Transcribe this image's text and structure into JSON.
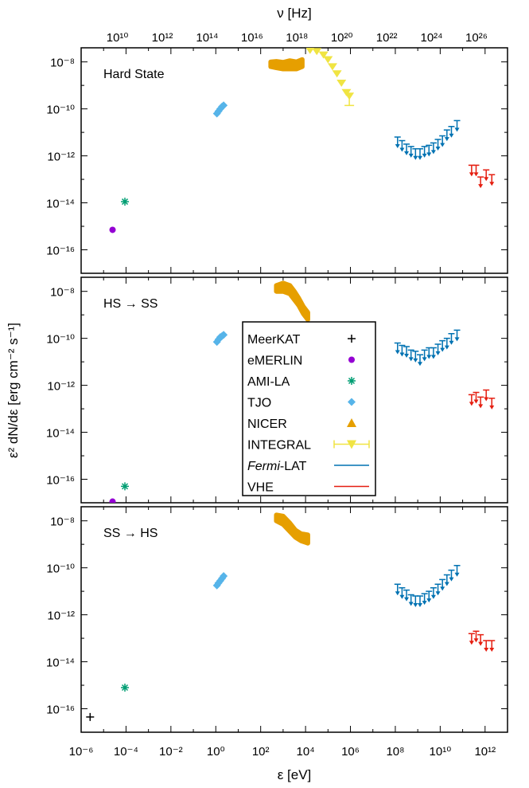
{
  "chart_data": {
    "type": "scatter",
    "shared_x_axis": {
      "label": "ε [eV]",
      "scale": "log",
      "range_eV": [
        1e-06,
        10000000000000.0
      ],
      "tick_labels": [
        "10⁻⁶",
        "10⁻⁴",
        "10⁻²",
        "10⁰",
        "10²",
        "10⁴",
        "10⁶",
        "10⁸",
        "10¹⁰",
        "10¹²"
      ]
    },
    "top_axis": {
      "label": "ν [Hz]",
      "scale": "log",
      "tick_labels": [
        "10¹⁰",
        "10¹²",
        "10¹⁴",
        "10¹⁶",
        "10¹⁸",
        "10²⁰",
        "10²²",
        "10²⁴",
        "10²⁶"
      ]
    },
    "y_axis": {
      "label": "ε² dN/dε [erg cm⁻² s⁻¹]",
      "scale": "log",
      "tick_labels": [
        "10⁻¹⁶",
        "10⁻¹⁴",
        "10⁻¹²",
        "10⁻¹⁰",
        "10⁻⁸"
      ]
    },
    "legend": {
      "placement": "inside, middle panel, center",
      "entries": [
        {
          "name": "MeerKAT",
          "marker": "plus",
          "color": "#000000"
        },
        {
          "name": "eMERLIN",
          "marker": "circle",
          "color": "#9400d3"
        },
        {
          "name": "AMI-LA",
          "marker": "asterisk",
          "color": "#009e73"
        },
        {
          "name": "TJO",
          "marker": "diamond",
          "color": "#56b4e9"
        },
        {
          "name": "NICER",
          "marker": "triangle",
          "color": "#e69f00"
        },
        {
          "name": "INTEGRAL",
          "marker": "triangle-down-errorbar",
          "color": "#f0e442"
        },
        {
          "name_pre": "",
          "name_italic": "Fermi",
          "name_post": "-LAT",
          "marker": "line",
          "color": "#0072b2"
        },
        {
          "name": "VHE",
          "marker": "line",
          "color": "#e51e10"
        }
      ]
    },
    "panels": [
      {
        "label": "Hard State",
        "ylim_log": [
          -17,
          -7.4
        ],
        "series": {
          "eMERLIN": [
            [
              -4.6,
              -15.15
            ]
          ],
          "AMI-LA": [
            [
              -4.05,
              -13.95
            ]
          ],
          "TJO": [
            [
              0.05,
              -10.2
            ],
            [
              0.12,
              -10.1
            ],
            [
              0.2,
              -10.0
            ],
            [
              0.28,
              -9.9
            ],
            [
              0.35,
              -9.85
            ]
          ],
          "NICER_band": [
            [
              2.45,
              -8.0,
              -8.2
            ],
            [
              2.7,
              -7.98,
              -8.25
            ],
            [
              3.0,
              -8.02,
              -8.3
            ],
            [
              3.3,
              -7.95,
              -8.3
            ],
            [
              3.6,
              -8.0,
              -8.3
            ],
            [
              3.85,
              -7.9,
              -8.2
            ]
          ],
          "INTEGRAL": [
            [
              4.2,
              -7.5
            ],
            [
              4.5,
              -7.55
            ],
            [
              4.8,
              -7.7
            ],
            [
              5.0,
              -7.9
            ],
            [
              5.2,
              -8.2
            ],
            [
              5.4,
              -8.5
            ],
            [
              5.6,
              -8.9
            ],
            [
              5.82,
              -9.3
            ],
            [
              5.95,
              -9.45
            ]
          ],
          "Fermi-LAT_UL": [
            [
              8.1,
              -11.2
            ],
            [
              8.3,
              -11.35
            ],
            [
              8.5,
              -11.5
            ],
            [
              8.7,
              -11.6
            ],
            [
              8.9,
              -11.7
            ],
            [
              9.1,
              -11.7
            ],
            [
              9.3,
              -11.6
            ],
            [
              9.5,
              -11.55
            ],
            [
              9.7,
              -11.45
            ],
            [
              9.9,
              -11.3
            ],
            [
              10.1,
              -11.15
            ],
            [
              10.3,
              -10.9
            ],
            [
              10.5,
              -10.75
            ],
            [
              10.75,
              -10.5
            ]
          ],
          "VHE_UL": [
            [
              11.4,
              -12.4
            ],
            [
              11.6,
              -12.4
            ],
            [
              11.8,
              -12.9
            ],
            [
              12.05,
              -12.6
            ],
            [
              12.3,
              -12.8
            ]
          ]
        }
      },
      {
        "label": "HS → SS",
        "ylim_log": [
          -17,
          -7.4
        ],
        "series": {
          "eMERLIN": [
            [
              -4.6,
              -16.95
            ]
          ],
          "AMI-LA": [
            [
              -4.05,
              -16.3
            ]
          ],
          "TJO": [
            [
              0.05,
              -10.15
            ],
            [
              0.12,
              -10.05
            ],
            [
              0.2,
              -9.95
            ],
            [
              0.28,
              -9.9
            ],
            [
              0.35,
              -9.85
            ]
          ],
          "NICER_band": [
            [
              2.7,
              -7.75,
              -8.0
            ],
            [
              3.0,
              -7.65,
              -8.0
            ],
            [
              3.3,
              -7.75,
              -8.1
            ],
            [
              3.5,
              -8.0,
              -8.35
            ],
            [
              3.7,
              -8.3,
              -8.6
            ],
            [
              3.9,
              -8.65,
              -8.95
            ],
            [
              4.1,
              -8.9,
              -9.2
            ]
          ],
          "Fermi-LAT_UL": [
            [
              8.1,
              -10.2
            ],
            [
              8.3,
              -10.3
            ],
            [
              8.5,
              -10.35
            ],
            [
              8.7,
              -10.5
            ],
            [
              8.9,
              -10.55
            ],
            [
              9.1,
              -10.7
            ],
            [
              9.3,
              -10.5
            ],
            [
              9.5,
              -10.4
            ],
            [
              9.7,
              -10.4
            ],
            [
              9.9,
              -10.25
            ],
            [
              10.1,
              -10.1
            ],
            [
              10.3,
              -10.0
            ],
            [
              10.5,
              -9.8
            ],
            [
              10.75,
              -9.65
            ]
          ],
          "VHE_UL": [
            [
              11.4,
              -12.4
            ],
            [
              11.6,
              -12.3
            ],
            [
              11.8,
              -12.5
            ],
            [
              12.05,
              -12.2
            ],
            [
              12.3,
              -12.55
            ]
          ]
        }
      },
      {
        "label": "SS → HS",
        "ylim_log": [
          -17,
          -7.4
        ],
        "series": {
          "MeerKAT": [
            [
              -5.6,
              -16.35
            ]
          ],
          "AMI-LA": [
            [
              -4.05,
              -15.1
            ]
          ],
          "TJO": [
            [
              0.05,
              -10.75
            ],
            [
              0.12,
              -10.65
            ],
            [
              0.2,
              -10.55
            ],
            [
              0.28,
              -10.45
            ],
            [
              0.35,
              -10.35
            ]
          ],
          "NICER_band": [
            [
              2.7,
              -7.75,
              -8.0
            ],
            [
              3.0,
              -7.8,
              -8.15
            ],
            [
              3.3,
              -8.1,
              -8.45
            ],
            [
              3.55,
              -8.4,
              -8.7
            ],
            [
              3.8,
              -8.55,
              -8.85
            ],
            [
              4.1,
              -8.6,
              -8.95
            ]
          ],
          "Fermi-LAT_UL": [
            [
              8.1,
              -10.7
            ],
            [
              8.3,
              -10.85
            ],
            [
              8.5,
              -10.95
            ],
            [
              8.7,
              -11.15
            ],
            [
              8.9,
              -11.2
            ],
            [
              9.1,
              -11.2
            ],
            [
              9.3,
              -11.1
            ],
            [
              9.5,
              -11.0
            ],
            [
              9.7,
              -10.85
            ],
            [
              9.9,
              -10.7
            ],
            [
              10.1,
              -10.5
            ],
            [
              10.3,
              -10.3
            ],
            [
              10.5,
              -10.1
            ],
            [
              10.75,
              -9.9
            ]
          ],
          "VHE_UL": [
            [
              11.4,
              -12.8
            ],
            [
              11.6,
              -12.7
            ],
            [
              11.8,
              -12.85
            ],
            [
              12.05,
              -13.1
            ],
            [
              12.3,
              -13.1
            ]
          ]
        }
      }
    ]
  }
}
